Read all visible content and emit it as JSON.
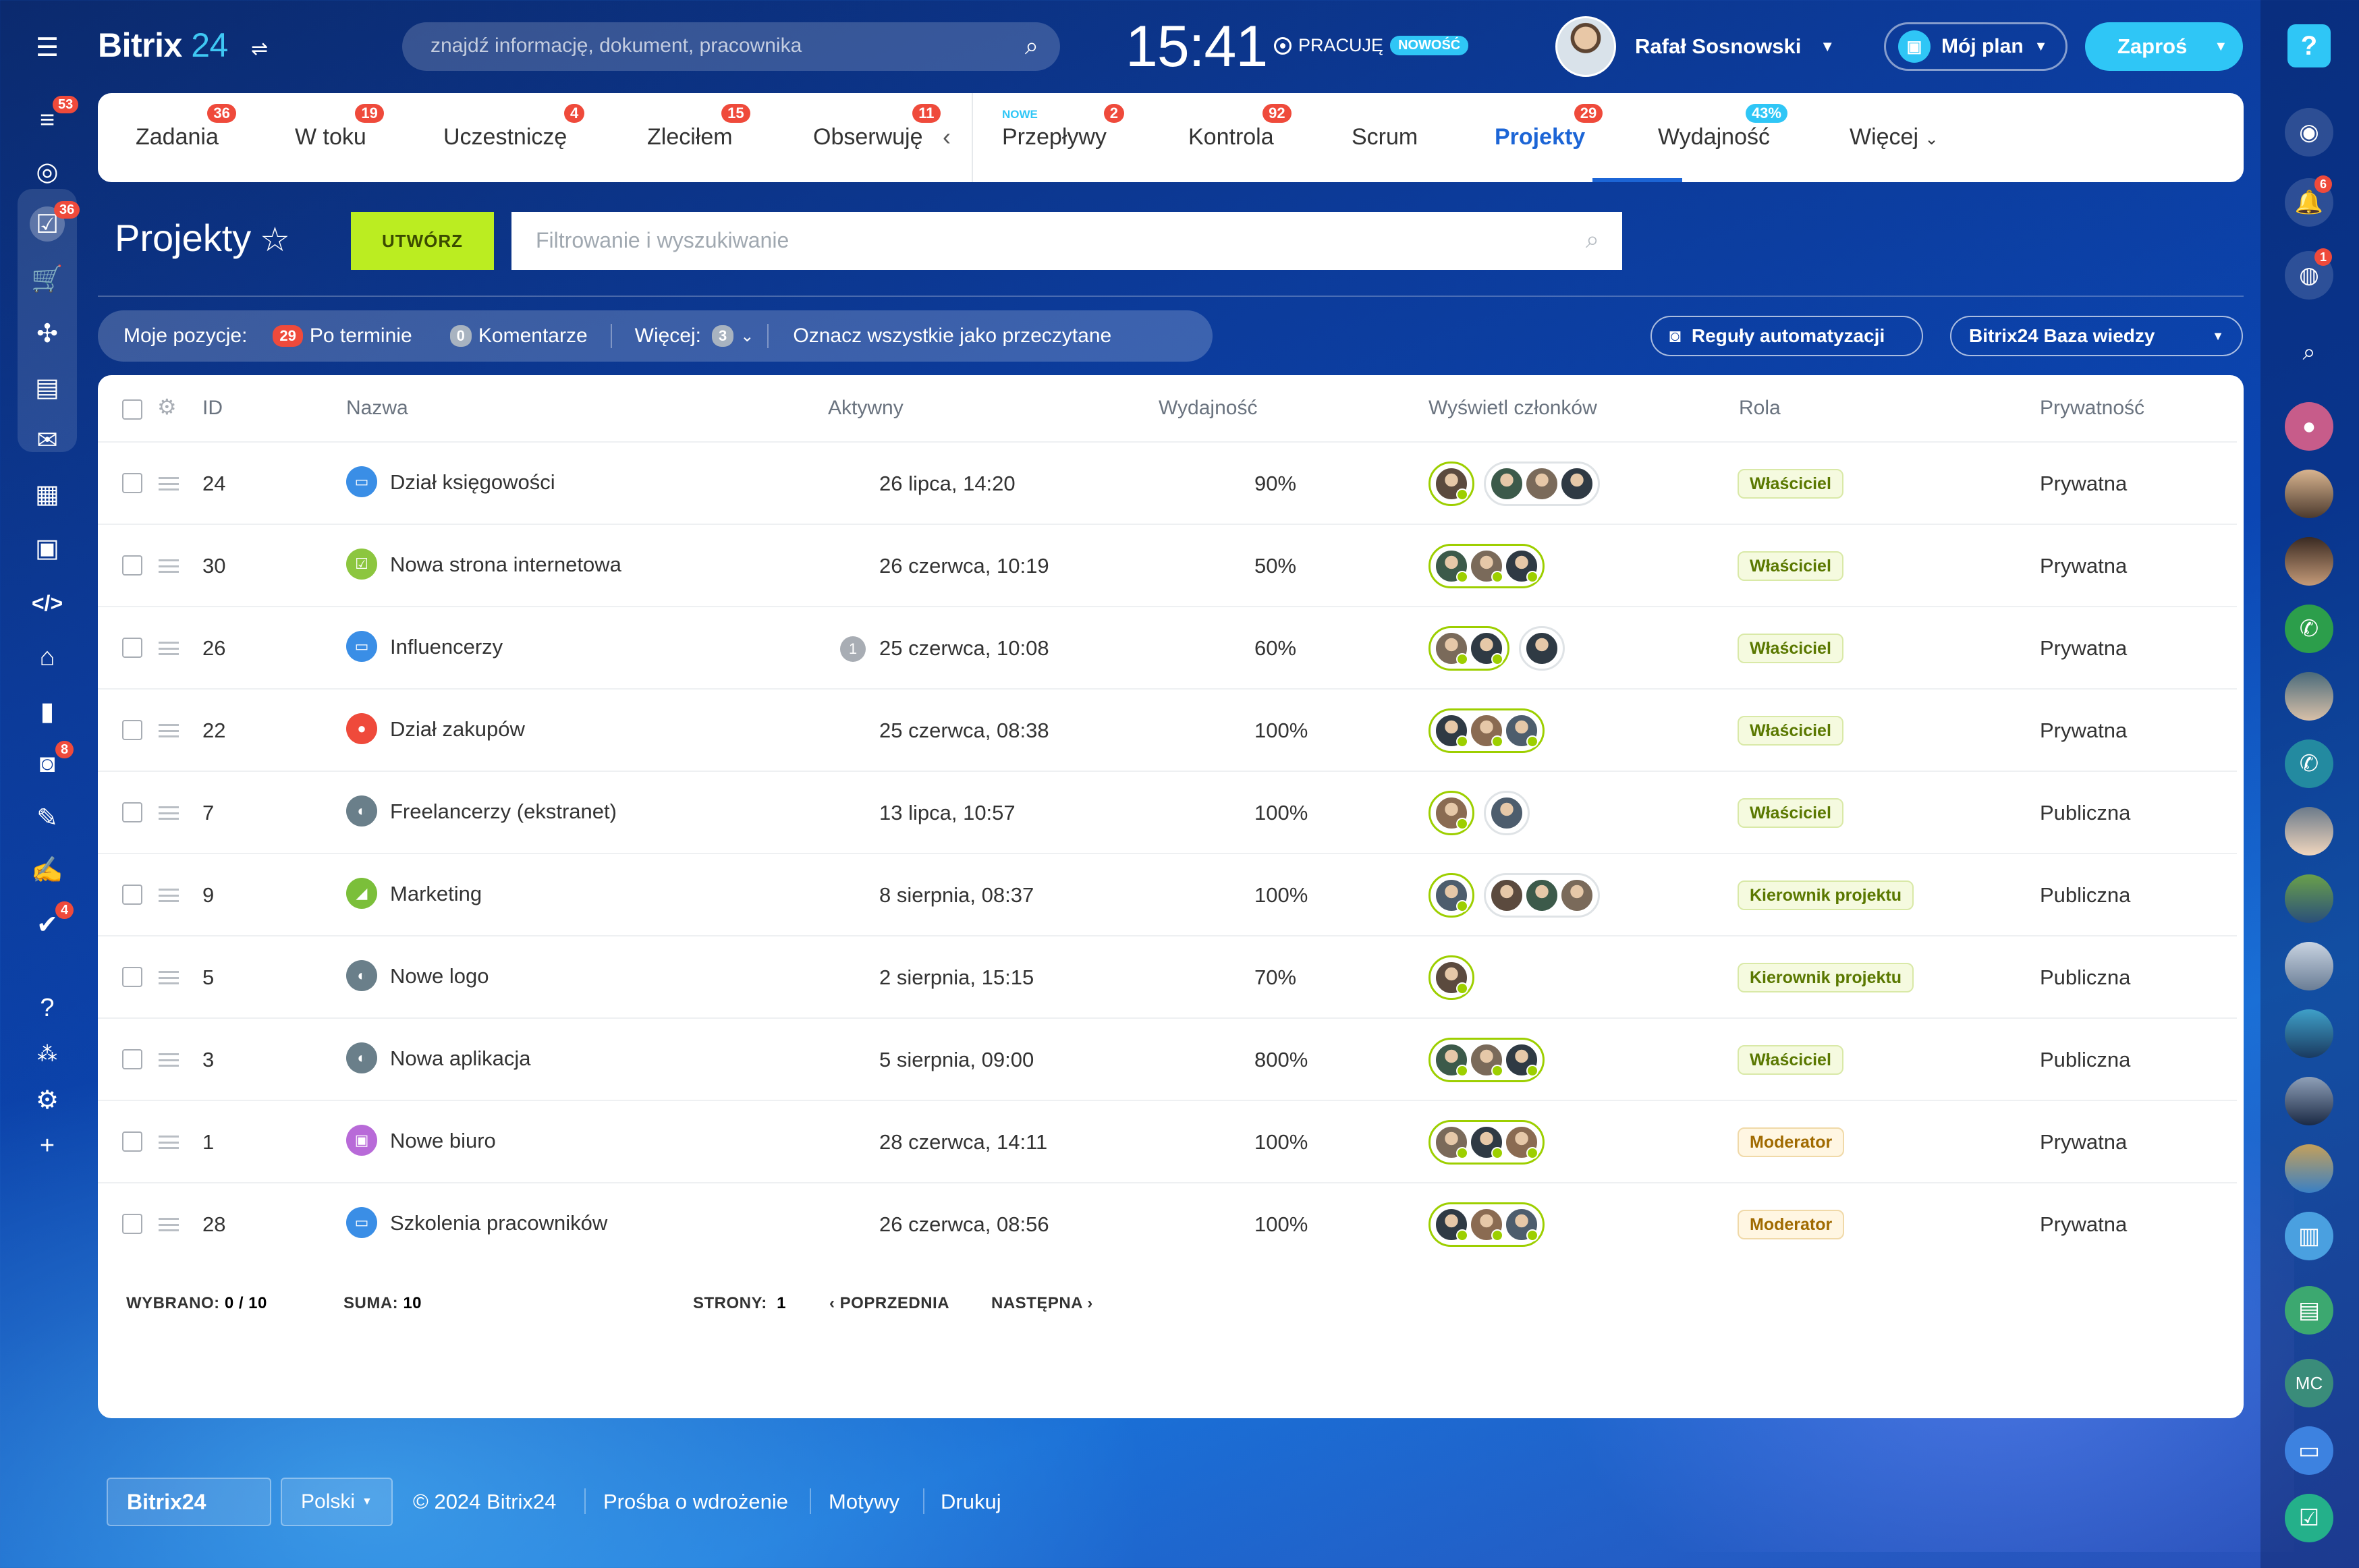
{
  "app": {
    "brand_name": "Bitrix",
    "brand_num": "24"
  },
  "search": {
    "placeholder": "znajdź informację, dokument, pracownika"
  },
  "clock": {
    "time": "15:41",
    "status": "PRACUJĘ",
    "new_badge": "NOWOŚĆ"
  },
  "user": {
    "name": "Rafał Sosnowski"
  },
  "my_plan": {
    "label": "Mój plan"
  },
  "invite": {
    "label": "Zaproś"
  },
  "left_sidebar": {
    "badges": {
      "feed": "53",
      "tasks": "36",
      "automation": "8",
      "approvals": "4"
    }
  },
  "right_sidebar": {
    "help": "?",
    "notif_badge": "6",
    "chat_badge": "1",
    "mc_label": "MC"
  },
  "tabs": [
    {
      "label": "Zadania",
      "count": "36"
    },
    {
      "label": "W toku",
      "count": "19"
    },
    {
      "label": "Uczestniczę",
      "count": "4"
    },
    {
      "label": "Zleciłem",
      "count": "15"
    },
    {
      "label": "Obserwuję",
      "count": "11"
    },
    {
      "label": "Przepływy",
      "count": "2",
      "tag": "NOWE"
    },
    {
      "label": "Kontrola",
      "count": "92"
    },
    {
      "label": "Scrum",
      "count": ""
    },
    {
      "label": "Projekty",
      "count": "29"
    },
    {
      "label": "Wydajność",
      "count": "43%"
    },
    {
      "label": "Więcej",
      "count": ""
    }
  ],
  "page": {
    "title": "Projekty",
    "create_label": "UTWÓRZ",
    "filter_placeholder": "Filtrowanie i wyszukiwanie"
  },
  "counters": {
    "label": "Moje pozycje:",
    "overdue_count": "29",
    "overdue_label": "Po terminie",
    "comments_count": "0",
    "comments_label": "Komentarze",
    "more_label": "Więcej:",
    "more_count": "3",
    "mark_read": "Oznacz wszystkie jako przeczytane"
  },
  "buttons": {
    "automation": "Reguły automatyzacji",
    "kb": "Bitrix24 Baza wiedzy"
  },
  "columns": {
    "id": "ID",
    "name": "Nazwa",
    "active": "Aktywny",
    "efficiency": "Wydajność",
    "members": "Wyświetl członków",
    "role": "Rola",
    "privacy": "Prywatność"
  },
  "rows": [
    {
      "id": "24",
      "name": "Dział księgowości",
      "active": "26 lipca, 14:20",
      "eff": "90%",
      "role": "Właściciel",
      "privacy": "Prywatna",
      "icon": "folder-icon",
      "comments": ""
    },
    {
      "id": "30",
      "name": "Nowa strona internetowa",
      "active": "26 czerwca, 10:19",
      "eff": "50%",
      "role": "Właściciel",
      "privacy": "Prywatna",
      "icon": "checklist-icon",
      "comments": ""
    },
    {
      "id": "26",
      "name": "Influencerzy",
      "active": "25 czerwca, 10:08",
      "eff": "60%",
      "role": "Właściciel",
      "privacy": "Prywatna",
      "icon": "folder-icon",
      "comments": "1"
    },
    {
      "id": "22",
      "name": "Dział zakupów",
      "active": "25 czerwca, 08:38",
      "eff": "100%",
      "role": "Właściciel",
      "privacy": "Prywatna",
      "icon": "group-icon",
      "comments": ""
    },
    {
      "id": "7",
      "name": "Freelancerzy (ekstranet)",
      "active": "13 lipca, 10:57",
      "eff": "100%",
      "role": "Właściciel",
      "privacy": "Publiczna",
      "icon": "image-icon",
      "comments": ""
    },
    {
      "id": "9",
      "name": "Marketing",
      "active": "8 sierpnia, 08:37",
      "eff": "100%",
      "role": "Kierownik projektu",
      "privacy": "Publiczna",
      "icon": "chart-icon",
      "comments": ""
    },
    {
      "id": "5",
      "name": "Nowe logo",
      "active": "2 sierpnia, 15:15",
      "eff": "70%",
      "role": "Kierownik projektu",
      "privacy": "Publiczna",
      "icon": "image-icon",
      "comments": ""
    },
    {
      "id": "3",
      "name": "Nowa aplikacja",
      "active": "5 sierpnia, 09:00",
      "eff": "800%",
      "role": "Właściciel",
      "privacy": "Publiczna",
      "icon": "image-icon",
      "comments": ""
    },
    {
      "id": "1",
      "name": "Nowe biuro",
      "active": "28 czerwca, 14:11",
      "eff": "100%",
      "role": "Moderator",
      "privacy": "Prywatna",
      "icon": "briefcase-icon",
      "comments": ""
    },
    {
      "id": "28",
      "name": "Szkolenia pracowników",
      "active": "26 czerwca, 08:56",
      "eff": "100%",
      "role": "Moderator",
      "privacy": "Prywatna",
      "icon": "folder-icon",
      "comments": ""
    }
  ],
  "footer_grid": {
    "selected_label": "WYBRANO:",
    "selected_value": "0 / 10",
    "total_label": "SUMA:",
    "total_value": "10",
    "pages_label": "STRONY:",
    "pages_value": "1",
    "prev": "POPRZEDNIA",
    "next": "NASTĘPNA"
  },
  "footer": {
    "logo": "Bitrix24",
    "language": "Polski",
    "copyright": "© 2024 Bitrix24",
    "links": [
      "Prośba o wdrożenie",
      "Motywy",
      "Drukuj"
    ]
  }
}
